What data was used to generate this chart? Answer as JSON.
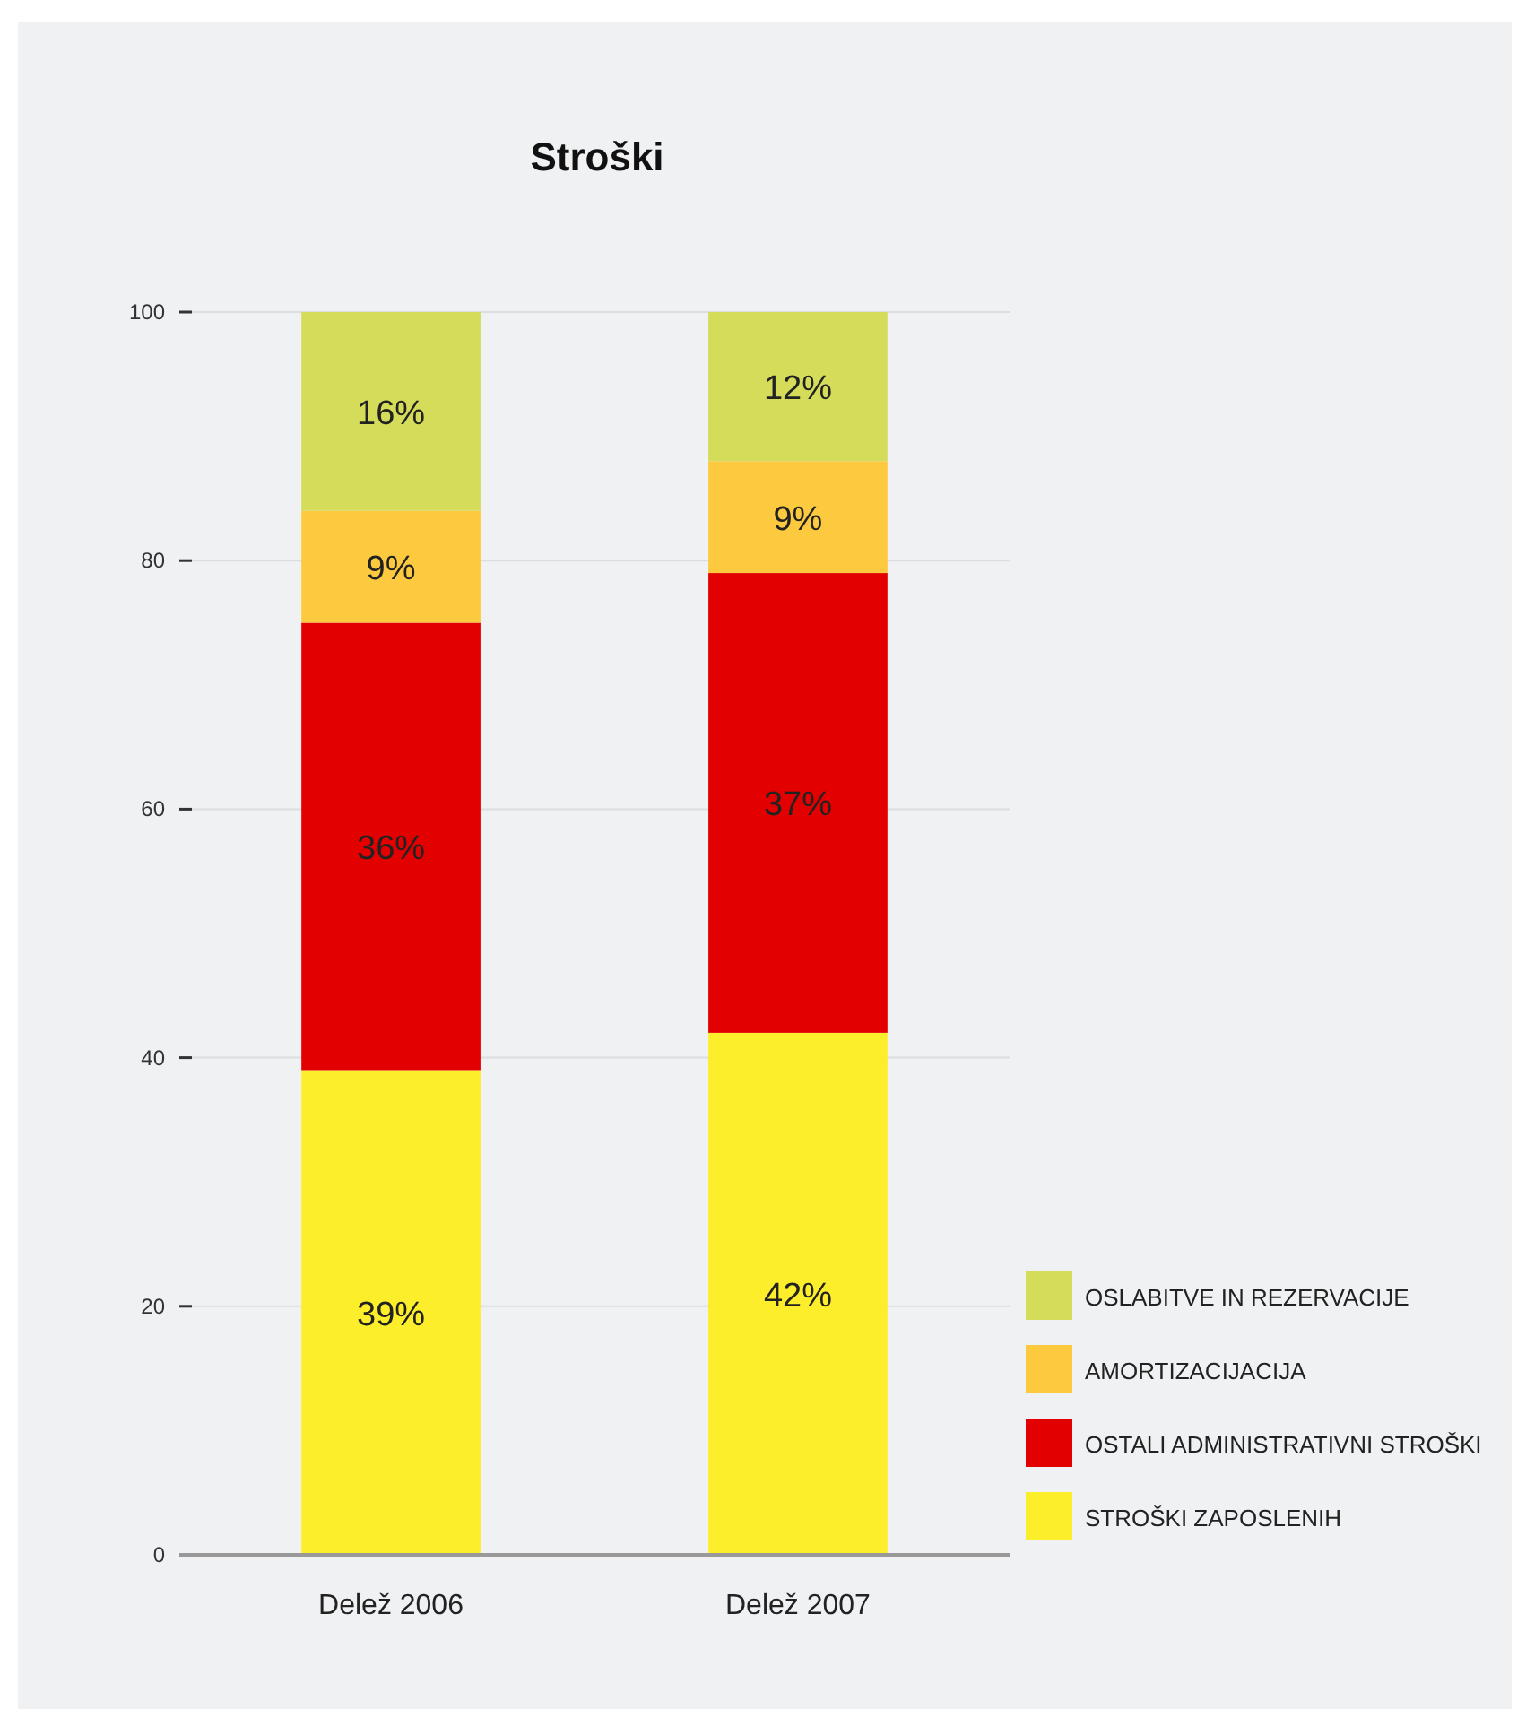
{
  "chart_data": {
    "type": "bar",
    "title": "Stroški",
    "categories": [
      "Delež 2006",
      "Delež 2007"
    ],
    "stacked": true,
    "ylim": [
      0,
      100
    ],
    "yticks": [
      0,
      20,
      40,
      60,
      80,
      100
    ],
    "grid": "y",
    "legend": "bottom right",
    "series": [
      {
        "name": "STROŠKI ZAPOSLENIH",
        "color": "#fcee2a",
        "values": [
          39,
          42
        ],
        "value_labels": [
          "39%",
          "42%"
        ]
      },
      {
        "name": "OSTALI ADMINISTRATIVNI STROŠKI",
        "color": "#e30000",
        "values": [
          36,
          37
        ],
        "value_labels": [
          "36%",
          "37%"
        ]
      },
      {
        "name": "AMORTIZACIJACIJA",
        "color": "#fcc93f",
        "values": [
          9,
          9
        ],
        "value_labels": [
          "9%",
          "9%"
        ]
      },
      {
        "name": "OSLABITVE IN REZERVACIJE",
        "color": "#d4dc5a",
        "values": [
          16,
          12
        ],
        "value_labels": [
          "16%",
          "12%"
        ]
      }
    ]
  }
}
